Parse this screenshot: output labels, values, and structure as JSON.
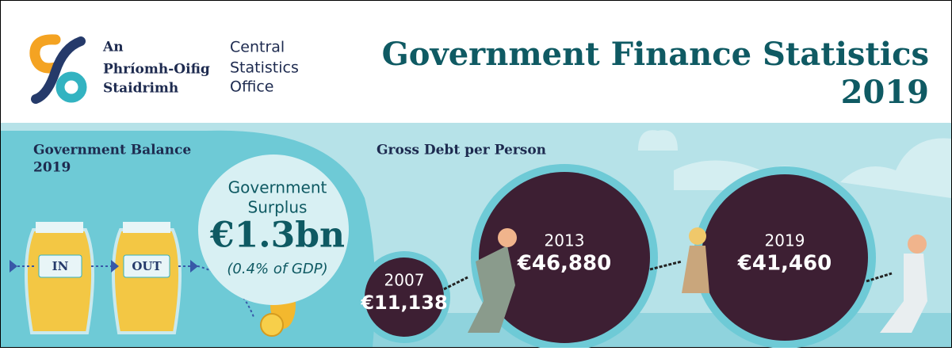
{
  "logo": {
    "irish": [
      "An",
      "Phríomh-Oifig",
      "Staidrimh"
    ],
    "english": [
      "Central",
      "Statistics",
      "Office"
    ]
  },
  "header": {
    "title": [
      "Government Finance Statistics",
      "2019"
    ]
  },
  "balance": {
    "heading": [
      "Government Balance",
      "2019"
    ],
    "jar_in": "IN",
    "jar_out": "OUT",
    "surplus": [
      "Government",
      "Surplus"
    ],
    "amount": "€1.3bn",
    "note": "(0.4% of GDP)"
  },
  "debt": {
    "heading": "Gross Debt per Person",
    "items": [
      {
        "year": "2007",
        "value": "€11,138"
      },
      {
        "year": "2013",
        "value": "€46,880"
      },
      {
        "year": "2019",
        "value": "€41,460"
      }
    ]
  }
}
